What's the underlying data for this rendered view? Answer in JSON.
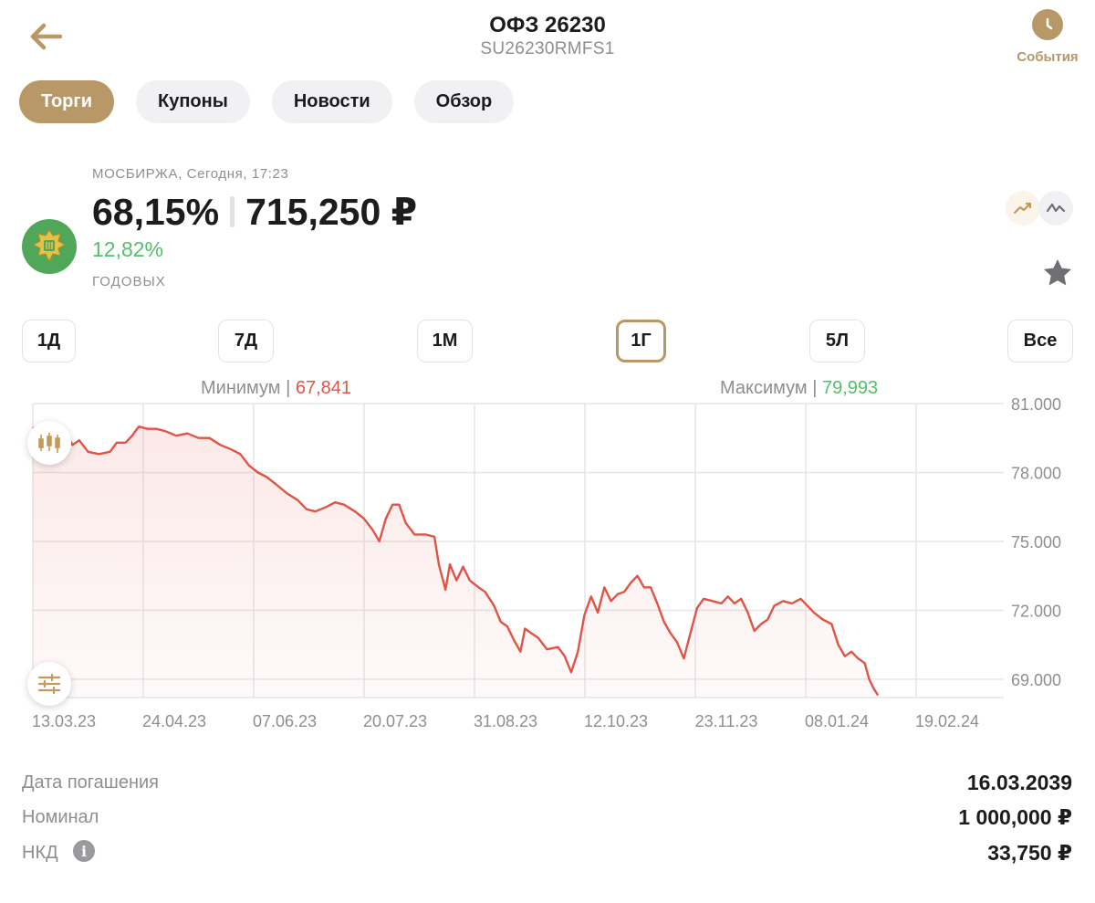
{
  "header": {
    "title": "ОФЗ 26230",
    "subtitle": "SU26230RMFS1",
    "events_label": "События",
    "back_icon": "arrow-left-icon",
    "events_icon": "clock-icon",
    "accent_color": "#b89866"
  },
  "tabs": [
    {
      "label": "Торги",
      "active": true
    },
    {
      "label": "Купоны",
      "active": false
    },
    {
      "label": "Новости",
      "active": false
    },
    {
      "label": "Обзор",
      "active": false
    }
  ],
  "quote": {
    "exchange": "МОСБИРЖА, Сегодня, 17:23",
    "price_percent": "68,15%",
    "price_rub": "715,250 ₽",
    "yield": "12,82%",
    "yield_label": "ГОДОВЫХ",
    "yield_color": "#52c069"
  },
  "periods": [
    {
      "label": "1Д",
      "active": false
    },
    {
      "label": "7Д",
      "active": false
    },
    {
      "label": "1М",
      "active": false
    },
    {
      "label": "1Г",
      "active": true
    },
    {
      "label": "5Л",
      "active": false
    },
    {
      "label": "Все",
      "active": false
    }
  ],
  "minmax": {
    "min_label": "Минимум",
    "min_value": "67,841",
    "max_label": "Максимум",
    "max_value": "79,993"
  },
  "chart_data": {
    "type": "area",
    "line_color": "#e05446",
    "grid": true,
    "y_axis_position": "right",
    "ylim": [
      68.2,
      81.0
    ],
    "yticks": [
      81,
      78,
      75,
      72,
      69
    ],
    "ytick_labels": [
      "81.000",
      "78.000",
      "75.000",
      "72.000",
      "69.000"
    ],
    "xticks": [
      "13.03.23",
      "24.04.23",
      "07.06.23",
      "20.07.23",
      "31.08.23",
      "12.10.23",
      "23.11.23",
      "08.01.24",
      "19.02.24"
    ],
    "series": [
      {
        "values": [
          [
            0.0,
            79.9
          ],
          [
            0.7,
            80.1
          ],
          [
            1.4,
            79.7
          ],
          [
            2.2,
            79.5
          ],
          [
            3.0,
            79.7
          ],
          [
            3.6,
            79.2
          ],
          [
            4.2,
            79.4
          ],
          [
            5.0,
            78.9
          ],
          [
            6.0,
            78.8
          ],
          [
            7.0,
            78.9
          ],
          [
            7.6,
            79.3
          ],
          [
            8.4,
            79.3
          ],
          [
            9.0,
            79.6
          ],
          [
            9.6,
            80.0
          ],
          [
            10.4,
            79.9
          ],
          [
            11.2,
            79.9
          ],
          [
            12.0,
            79.8
          ],
          [
            13.0,
            79.6
          ],
          [
            14.0,
            79.7
          ],
          [
            15.0,
            79.5
          ],
          [
            16.0,
            79.5
          ],
          [
            17.0,
            79.2
          ],
          [
            18.0,
            79.0
          ],
          [
            18.8,
            78.8
          ],
          [
            19.6,
            78.3
          ],
          [
            20.4,
            78.0
          ],
          [
            21.2,
            77.8
          ],
          [
            22.0,
            77.5
          ],
          [
            23.0,
            77.1
          ],
          [
            24.0,
            76.8
          ],
          [
            24.8,
            76.4
          ],
          [
            25.6,
            76.3
          ],
          [
            26.6,
            76.5
          ],
          [
            27.4,
            76.7
          ],
          [
            28.2,
            76.6
          ],
          [
            29.2,
            76.3
          ],
          [
            30.0,
            76.0
          ],
          [
            30.8,
            75.5
          ],
          [
            31.4,
            75.0
          ],
          [
            32.0,
            76.0
          ],
          [
            32.6,
            76.6
          ],
          [
            33.2,
            76.6
          ],
          [
            33.8,
            75.8
          ],
          [
            34.6,
            75.3
          ],
          [
            35.6,
            75.3
          ],
          [
            36.4,
            75.2
          ],
          [
            36.8,
            74.0
          ],
          [
            37.4,
            72.9
          ],
          [
            37.8,
            74.0
          ],
          [
            38.4,
            73.3
          ],
          [
            39.0,
            73.9
          ],
          [
            39.6,
            73.3
          ],
          [
            40.4,
            73.0
          ],
          [
            41.0,
            72.8
          ],
          [
            41.8,
            72.2
          ],
          [
            42.4,
            71.5
          ],
          [
            43.0,
            71.3
          ],
          [
            43.6,
            70.7
          ],
          [
            44.2,
            70.2
          ],
          [
            44.6,
            71.2
          ],
          [
            45.2,
            71.0
          ],
          [
            45.8,
            70.8
          ],
          [
            46.6,
            70.3
          ],
          [
            47.6,
            70.4
          ],
          [
            48.2,
            70.0
          ],
          [
            48.8,
            69.3
          ],
          [
            49.4,
            70.2
          ],
          [
            50.0,
            71.8
          ],
          [
            50.6,
            72.6
          ],
          [
            51.2,
            71.9
          ],
          [
            51.8,
            73.0
          ],
          [
            52.4,
            72.4
          ],
          [
            53.0,
            72.7
          ],
          [
            53.6,
            72.8
          ],
          [
            54.2,
            73.2
          ],
          [
            54.8,
            73.5
          ],
          [
            55.4,
            73.0
          ],
          [
            56.0,
            73.0
          ],
          [
            56.6,
            72.3
          ],
          [
            57.2,
            71.5
          ],
          [
            57.8,
            71.0
          ],
          [
            58.4,
            70.6
          ],
          [
            59.0,
            69.9
          ],
          [
            59.6,
            71.0
          ],
          [
            60.2,
            72.1
          ],
          [
            60.8,
            72.5
          ],
          [
            61.6,
            72.4
          ],
          [
            62.4,
            72.3
          ],
          [
            63.0,
            72.6
          ],
          [
            63.6,
            72.3
          ],
          [
            64.2,
            72.5
          ],
          [
            64.8,
            71.9
          ],
          [
            65.4,
            71.1
          ],
          [
            66.0,
            71.4
          ],
          [
            66.6,
            71.6
          ],
          [
            67.2,
            72.2
          ],
          [
            68.0,
            72.4
          ],
          [
            68.8,
            72.3
          ],
          [
            69.6,
            72.5
          ],
          [
            70.2,
            72.2
          ],
          [
            70.8,
            71.9
          ],
          [
            71.6,
            71.6
          ],
          [
            72.4,
            71.4
          ],
          [
            73.0,
            70.5
          ],
          [
            73.6,
            70.0
          ],
          [
            74.2,
            70.2
          ],
          [
            74.8,
            69.9
          ],
          [
            75.4,
            69.7
          ],
          [
            75.8,
            69.0
          ],
          [
            76.2,
            68.6
          ],
          [
            76.6,
            68.3
          ]
        ]
      }
    ]
  },
  "chart_controls": {
    "candles_icon": "candlestick-icon",
    "settings_icon": "sliders-icon"
  },
  "details": [
    {
      "label": "Дата погашения",
      "value": "16.03.2039"
    },
    {
      "label": "Номинал",
      "value": "1 000,000 ₽"
    },
    {
      "label": "НКД",
      "value": "33,750 ₽"
    }
  ],
  "info_icon_glyph": "i"
}
